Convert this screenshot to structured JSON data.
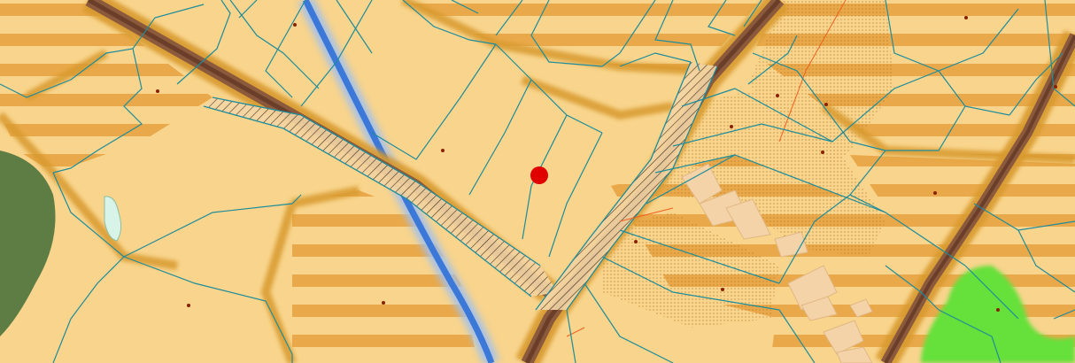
{
  "map": {
    "view": "cadastral-zoning-map",
    "colors": {
      "base": "#F8D48C",
      "stripe": "#E8A840",
      "road_edge": "#D89A2E",
      "road_core": "#8B5A3C",
      "road_dark": "#6B3E2A",
      "parcel_line": "#1E8C9A",
      "river": "#3C78D8",
      "forest": "#5E7D45",
      "meadow": "#66E03A",
      "pond": "#D8F4E8",
      "building": "#F5D3A8",
      "marker": "#E00000",
      "centroid": "#8B2000",
      "orange_line": "#F06020",
      "stipple": "#C07820"
    },
    "marker": {
      "icon": "location-dot-icon"
    },
    "icons": {
      "river": "river-icon",
      "road": "road-icon",
      "forest": "forest-icon",
      "meadow": "meadow-icon",
      "building": "building-icon"
    }
  }
}
